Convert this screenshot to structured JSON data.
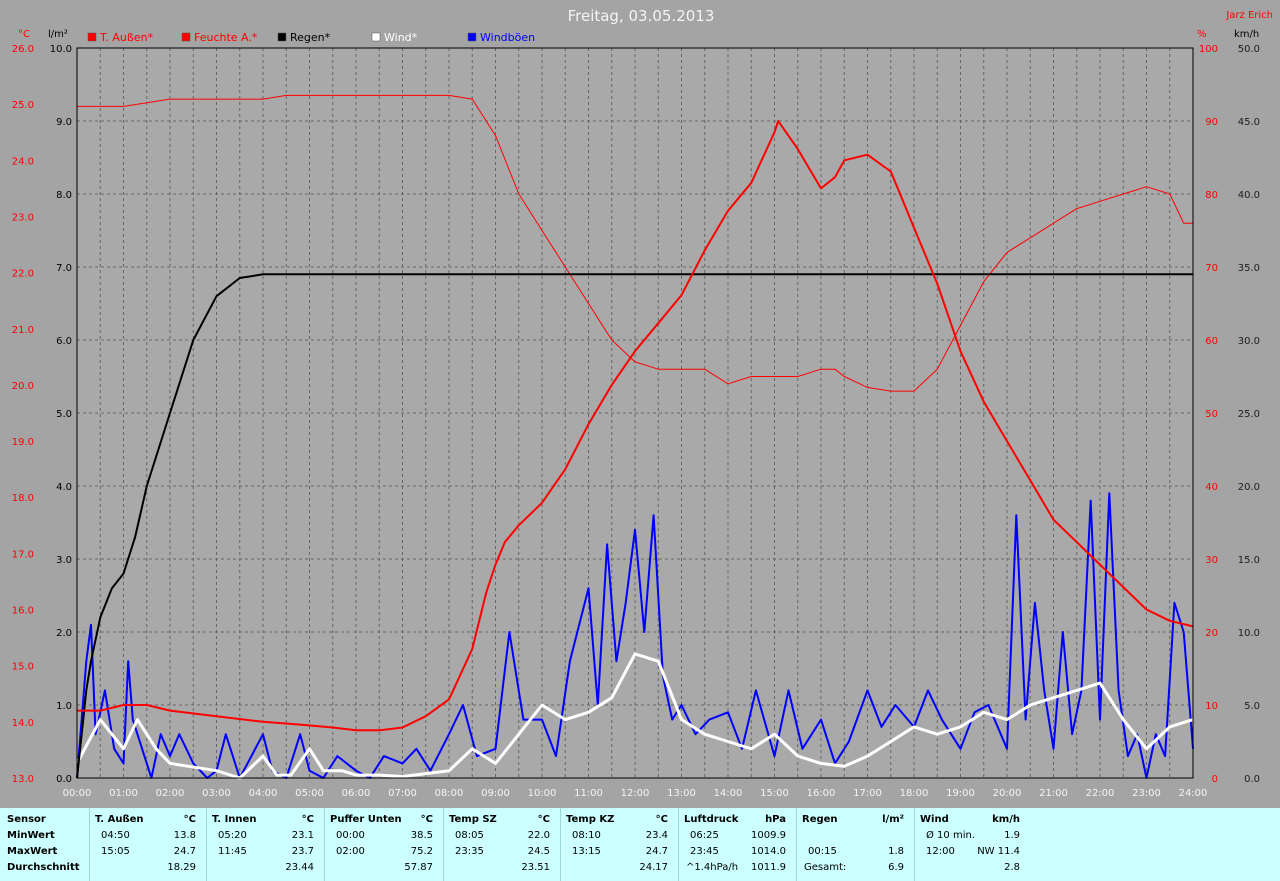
{
  "header": {
    "title": "Freitag, 03.05.2013",
    "author": "Jarz Erich"
  },
  "colors": {
    "background": "#a4a4a4",
    "plot_background": "#a9a9a9",
    "temp": "#ff0000",
    "humidity": "#ff0000",
    "rain": "#000000",
    "wind": "#ffffff",
    "gust": "#0000ff",
    "stats_background": "#ccffff"
  },
  "chart_data": {
    "type": "line",
    "x_unit": "time of day (hours)",
    "x_ticks": [
      "00:00",
      "01:00",
      "02:00",
      "03:00",
      "04:00",
      "05:00",
      "06:00",
      "07:00",
      "08:00",
      "09:00",
      "10:00",
      "11:00",
      "12:00",
      "13:00",
      "14:00",
      "15:00",
      "16:00",
      "17:00",
      "18:00",
      "19:00",
      "20:00",
      "21:00",
      "22:00",
      "23:00",
      "24:00"
    ],
    "axes": {
      "temp": {
        "unit": "°C",
        "range": [
          13.0,
          26.0
        ],
        "ticks": [
          "13.0",
          "14.0",
          "15.0",
          "16.0",
          "17.0",
          "18.0",
          "19.0",
          "20.0",
          "21.0",
          "22.0",
          "23.0",
          "24.0",
          "25.0",
          "26.0"
        ]
      },
      "rain": {
        "unit": "l/m²",
        "range": [
          0.0,
          10.0
        ],
        "ticks": [
          "0.0",
          "1.0",
          "2.0",
          "3.0",
          "4.0",
          "5.0",
          "6.0",
          "7.0",
          "8.0",
          "9.0",
          "10.0"
        ]
      },
      "humidity": {
        "unit": "%",
        "range": [
          0,
          100
        ],
        "ticks": [
          "0",
          "10",
          "20",
          "30",
          "40",
          "50",
          "60",
          "70",
          "80",
          "90",
          "100"
        ]
      },
      "wind": {
        "unit": "km/h",
        "range": [
          0.0,
          50.0
        ],
        "ticks": [
          "0.0",
          "5.0",
          "10.0",
          "15.0",
          "20.0",
          "25.0",
          "30.0",
          "35.0",
          "40.0",
          "45.0",
          "50.0"
        ]
      }
    },
    "legend": [
      "T. Außen*",
      "Feuchte A.*",
      "Regen*",
      "Wind*",
      "Windböen"
    ],
    "grid": true,
    "series": [
      {
        "name": "T. Außen*",
        "axis": "temp",
        "x": [
          0,
          0.5,
          1,
          1.5,
          2,
          3,
          4,
          4.83,
          5.5,
          6,
          6.5,
          7,
          7.5,
          8,
          8.5,
          8.8,
          9,
          9.2,
          9.5,
          10,
          10.5,
          11,
          11.5,
          12,
          12.5,
          13,
          13.5,
          14,
          14.5,
          15,
          15.08,
          15.5,
          16,
          16.3,
          16.5,
          17,
          17.5,
          18,
          18.5,
          19,
          19.5,
          20,
          20.5,
          21,
          21.5,
          22,
          22.5,
          23,
          23.5,
          24
        ],
        "y": [
          14.2,
          14.2,
          14.3,
          14.3,
          14.2,
          14.1,
          14.0,
          13.95,
          13.9,
          13.85,
          13.85,
          13.9,
          14.1,
          14.4,
          15.3,
          16.3,
          16.8,
          17.2,
          17.5,
          17.9,
          18.5,
          19.3,
          20.0,
          20.6,
          21.1,
          21.6,
          22.4,
          23.1,
          23.6,
          24.5,
          24.7,
          24.2,
          23.5,
          23.7,
          24.0,
          24.1,
          23.8,
          22.8,
          21.8,
          20.6,
          19.7,
          19.0,
          18.3,
          17.6,
          17.2,
          16.8,
          16.4,
          16.0,
          15.8,
          15.7
        ]
      },
      {
        "name": "Feuchte A.*",
        "axis": "humidity",
        "x": [
          0,
          1,
          1.5,
          2,
          3,
          4,
          4.5,
          5,
          6,
          7,
          8,
          8.5,
          9,
          9.5,
          10,
          10.5,
          11,
          11.5,
          12,
          12.5,
          13,
          13.5,
          14,
          14.5,
          15,
          15.5,
          16,
          16.3,
          16.5,
          17,
          17.5,
          18,
          18.5,
          19,
          19.5,
          20,
          20.5,
          21,
          21.5,
          22,
          22.5,
          23,
          23.5,
          23.8,
          24
        ],
        "y": [
          92,
          92,
          92.5,
          93,
          93,
          93,
          93.5,
          93.5,
          93.5,
          93.5,
          93.5,
          93,
          88,
          80,
          75,
          70,
          65,
          60,
          57,
          56,
          56,
          56,
          54,
          55,
          55,
          55,
          56,
          56,
          55,
          53.5,
          53,
          53,
          56,
          62,
          68,
          72,
          74,
          76,
          78,
          79,
          80,
          81,
          80,
          76,
          76
        ]
      },
      {
        "name": "Regen*",
        "axis": "rain",
        "x": [
          0,
          0.1,
          0.2,
          0.3,
          0.5,
          0.75,
          1,
          1.25,
          1.5,
          1.75,
          2,
          2.5,
          3,
          3.5,
          4,
          24
        ],
        "y": [
          0,
          0.6,
          1.2,
          1.6,
          2.2,
          2.6,
          2.8,
          3.3,
          4.0,
          4.5,
          5.0,
          6.0,
          6.6,
          6.85,
          6.9,
          6.9
        ]
      },
      {
        "name": "Wind*",
        "axis": "wind",
        "x": [
          0,
          0.5,
          1,
          1.3,
          1.7,
          2,
          3,
          3.5,
          4,
          4.3,
          4.6,
          5,
          5.3,
          5.7,
          6,
          6.5,
          7,
          7.5,
          8,
          8.5,
          9,
          9.5,
          10,
          10.5,
          11,
          11.5,
          12,
          12.5,
          13,
          13.5,
          14,
          14.5,
          15,
          15.5,
          16,
          16.5,
          17,
          17.5,
          18,
          18.5,
          19,
          19.5,
          20,
          20.5,
          21,
          21.5,
          22,
          22.5,
          23,
          23.5,
          24
        ],
        "y": [
          1.0,
          4.0,
          2.0,
          4.0,
          2.0,
          1.0,
          0.5,
          0.0,
          1.5,
          0.2,
          0.2,
          2.0,
          0.5,
          0.5,
          0.2,
          0.2,
          0.1,
          0.3,
          0.5,
          2.0,
          1.0,
          3.0,
          5.0,
          4.0,
          4.5,
          5.5,
          8.5,
          8.0,
          4.0,
          3.0,
          2.5,
          2.0,
          3.0,
          1.5,
          1.0,
          0.8,
          1.5,
          2.5,
          3.5,
          3.0,
          3.5,
          4.5,
          4.0,
          5.0,
          5.5,
          6.0,
          6.5,
          4.0,
          2.0,
          3.5,
          4.0
        ]
      },
      {
        "name": "Windböen",
        "axis": "wind",
        "x": [
          0,
          0.2,
          0.3,
          0.4,
          0.6,
          0.8,
          1,
          1.1,
          1.2,
          1.4,
          1.6,
          1.8,
          2,
          2.2,
          2.5,
          2.8,
          3,
          3.2,
          3.5,
          4,
          4.2,
          4.5,
          4.8,
          5,
          5.3,
          5.6,
          6,
          6.3,
          6.6,
          7,
          7.3,
          7.6,
          8,
          8.3,
          8.6,
          9,
          9.3,
          9.6,
          10,
          10.3,
          10.6,
          11,
          11.2,
          11.4,
          11.6,
          11.8,
          12,
          12.2,
          12.4,
          12.6,
          12.8,
          13,
          13.3,
          13.6,
          14,
          14.3,
          14.6,
          15,
          15.3,
          15.6,
          16,
          16.3,
          16.6,
          17,
          17.3,
          17.6,
          18,
          18.3,
          18.6,
          19,
          19.3,
          19.6,
          20,
          20.2,
          20.4,
          20.6,
          20.8,
          21,
          21.2,
          21.4,
          21.6,
          21.8,
          22,
          22.2,
          22.4,
          22.6,
          22.8,
          23,
          23.2,
          23.4,
          23.6,
          23.8,
          24
        ],
        "y": [
          0,
          8.0,
          10.5,
          3.0,
          6.0,
          2.0,
          1.0,
          8.0,
          4.0,
          2.0,
          0.0,
          3.0,
          1.5,
          3.0,
          1.0,
          0.0,
          0.5,
          3.0,
          0.0,
          3.0,
          0.5,
          0.0,
          3.0,
          0.5,
          0.0,
          1.5,
          0.5,
          0.0,
          1.5,
          1.0,
          2.0,
          0.5,
          3.0,
          5.0,
          1.5,
          2.0,
          10.0,
          4.0,
          4.0,
          1.5,
          8.0,
          13.0,
          5.0,
          16.0,
          8.0,
          12.0,
          17.0,
          10.0,
          18.0,
          7.0,
          4.0,
          5.0,
          3.0,
          4.0,
          4.5,
          2.0,
          6.0,
          1.5,
          6.0,
          2.0,
          4.0,
          1.0,
          2.5,
          6.0,
          3.5,
          5.0,
          3.5,
          6.0,
          4.0,
          2.0,
          4.5,
          5.0,
          2.0,
          18.0,
          4.0,
          12.0,
          6.0,
          2.0,
          10.0,
          3.0,
          6.0,
          19.0,
          4.0,
          19.5,
          6.0,
          1.5,
          3.0,
          0.0,
          3.0,
          1.5,
          12.0,
          10.0,
          2.0
        ]
      }
    ]
  },
  "stats": {
    "row_labels": {
      "sensor": "Sensor",
      "min": "MinWert",
      "max": "MaxWert",
      "avg": "Durchschnitt"
    },
    "columns": [
      {
        "title": "T. Außen",
        "unit": "°C",
        "min_time": "04:50",
        "min_val": "13.8",
        "max_time": "15:05",
        "max_val": "24.7",
        "avg_note": "",
        "avg_val": "18.29"
      },
      {
        "title": "T. Innen",
        "unit": "°C",
        "min_time": "05:20",
        "min_val": "23.1",
        "max_time": "11:45",
        "max_val": "23.7",
        "avg_note": "",
        "avg_val": "23.44"
      },
      {
        "title": "Puffer Unten",
        "unit": "°C",
        "min_time": "00:00",
        "min_val": "38.5",
        "max_time": "02:00",
        "max_val": "75.2",
        "avg_note": "",
        "avg_val": "57.87"
      },
      {
        "title": "Temp SZ",
        "unit": "°C",
        "min_time": "08:05",
        "min_val": "22.0",
        "max_time": "23:35",
        "max_val": "24.5",
        "avg_note": "",
        "avg_val": "23.51"
      },
      {
        "title": "Temp KZ",
        "unit": "°C",
        "min_time": "08:10",
        "min_val": "23.4",
        "max_time": "13:15",
        "max_val": "24.7",
        "avg_note": "",
        "avg_val": "24.17"
      },
      {
        "title": "Luftdruck",
        "unit": "hPa",
        "min_time": "06:25",
        "min_val": "1009.9",
        "max_time": "23:45",
        "max_val": "1014.0",
        "avg_note": "^1.4hPa/h",
        "avg_val": "1011.9"
      },
      {
        "title": "Regen",
        "unit": "l/m²",
        "min_time": "",
        "min_val": "",
        "max_time": "00:15",
        "max_val": "1.8",
        "avg_note": "Gesamt:",
        "avg_val": "6.9"
      },
      {
        "title": "Wind",
        "unit": "km/h",
        "min_time": "Ø 10 min.",
        "min_val": "1.9",
        "max_time": "12:00",
        "max_val": "NW 11.4",
        "avg_note": "",
        "avg_val": "2.8"
      }
    ]
  }
}
